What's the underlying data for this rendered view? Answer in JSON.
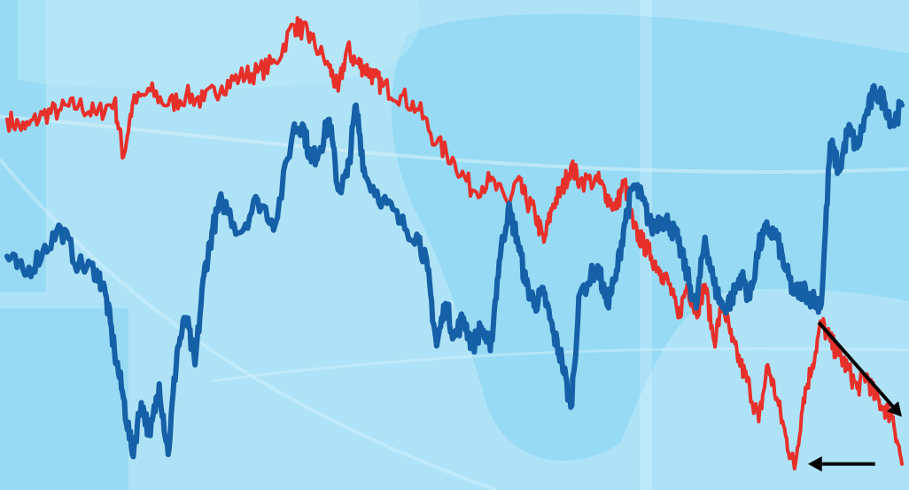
{
  "colors": {
    "background": "#aee3f7",
    "panel_dark": "#86d3f1",
    "panel_light": "#bde9f9",
    "series_red": "#e8302a",
    "series_blue": "#1660a8",
    "arrow": "#000000"
  },
  "chart_data": {
    "type": "line",
    "title": "",
    "xlabel": "",
    "ylabel": "",
    "grid": false,
    "legend": "none",
    "xlim": [
      0,
      100
    ],
    "ylim": [
      0,
      100
    ],
    "series": [
      {
        "color": "#e8302a",
        "x": [
          0,
          2,
          4,
          6,
          8,
          10,
          12,
          13,
          14,
          16,
          18,
          20,
          22,
          24,
          26,
          28,
          30,
          32,
          33,
          34,
          36,
          37,
          38,
          39,
          40,
          41,
          42,
          44,
          46,
          48,
          50,
          52,
          54,
          56,
          57,
          58,
          59,
          60,
          61,
          62,
          63,
          64,
          66,
          67,
          68,
          69,
          70,
          71,
          72,
          73,
          74,
          75,
          76,
          77,
          78,
          79,
          80,
          81,
          82,
          83,
          84,
          85,
          86,
          87,
          88,
          89,
          90,
          91,
          92,
          93,
          94,
          95,
          96,
          97,
          98,
          99,
          100
        ],
        "values": [
          77,
          75,
          78,
          79,
          80,
          78,
          81,
          69,
          80,
          83,
          80,
          82,
          81,
          84,
          86,
          87,
          89,
          97,
          96,
          94,
          88,
          83,
          92,
          89,
          88,
          86,
          84,
          82,
          79,
          72,
          68,
          62,
          64,
          59,
          64,
          60,
          57,
          51,
          59,
          62,
          67,
          64,
          64,
          61,
          58,
          64,
          54,
          51,
          48,
          45,
          42,
          35,
          42,
          36,
          42,
          30,
          38,
          30,
          25,
          20,
          13,
          25,
          18,
          10,
          3,
          18,
          25,
          34,
          30,
          27,
          24,
          20,
          23,
          18,
          16,
          14,
          4
        ]
      },
      {
        "color": "#1660a8",
        "x": [
          0,
          2,
          4,
          6,
          8,
          10,
          11,
          12,
          13,
          14,
          15,
          16,
          17,
          18,
          19,
          20,
          21,
          22,
          23,
          24,
          26,
          28,
          30,
          32,
          33,
          34,
          35,
          36,
          37,
          38,
          39,
          40,
          42,
          44,
          46,
          47,
          48,
          49,
          50,
          51,
          52,
          53,
          54,
          55,
          56,
          57,
          58,
          59,
          60,
          61,
          62,
          63,
          64,
          66,
          67,
          68,
          69,
          70,
          71,
          72,
          73,
          74,
          75,
          76,
          77,
          78,
          79,
          80,
          81,
          82,
          83,
          84,
          85,
          86,
          87,
          88,
          89,
          90,
          91,
          92,
          93,
          94,
          95,
          96,
          97,
          98,
          99,
          100
        ],
        "values": [
          48,
          44,
          49,
          54,
          46,
          45,
          40,
          28,
          18,
          6,
          17,
          10,
          21,
          6,
          28,
          35,
          25,
          44,
          54,
          60,
          53,
          60,
          55,
          75,
          76,
          68,
          71,
          77,
          62,
          65,
          80,
          65,
          60,
          55,
          52,
          45,
          29,
          38,
          31,
          35,
          29,
          33,
          28,
          47,
          58,
          52,
          42,
          38,
          40,
          32,
          26,
          16,
          40,
          46,
          38,
          43,
          55,
          63,
          60,
          54,
          56,
          55,
          51,
          44,
          37,
          52,
          42,
          37,
          39,
          44,
          39,
          50,
          54,
          52,
          45,
          40,
          41,
          39,
          38,
          72,
          66,
          75,
          71,
          78,
          83,
          81,
          76,
          80
        ]
      }
    ],
    "annotations": [
      {
        "kind": "arrow",
        "from": [
          90.7,
          34
        ],
        "to": [
          100,
          14
        ]
      },
      {
        "kind": "arrow",
        "from": [
          97,
          4
        ],
        "to": [
          89.5,
          4
        ]
      }
    ]
  }
}
